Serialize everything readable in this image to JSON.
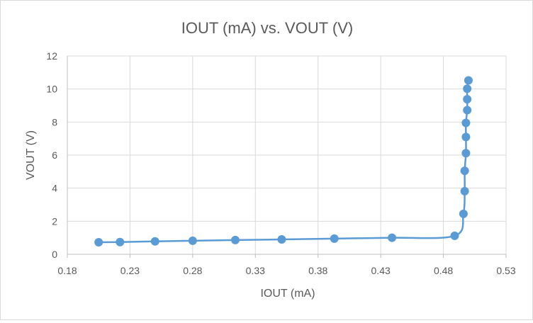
{
  "chart_data": {
    "type": "scatter",
    "title": "IOUT (mA) vs. VOUT (V)",
    "xlabel": "IOUT (mA)",
    "ylabel": "VOUT (V)",
    "xlim": [
      0.18,
      0.53
    ],
    "ylim": [
      0,
      12
    ],
    "x_ticks": [
      0.18,
      0.23,
      0.28,
      0.33,
      0.38,
      0.43,
      0.48,
      0.53
    ],
    "x_tick_labels": [
      "0.18",
      "0.23",
      "0.28",
      "0.33",
      "0.38",
      "0.43",
      "0.48",
      "0.53"
    ],
    "y_ticks": [
      0,
      2,
      4,
      6,
      8,
      10,
      12
    ],
    "y_tick_labels": [
      "0",
      "2",
      "4",
      "6",
      "8",
      "10",
      "12"
    ],
    "grid": true,
    "smooth_line": true,
    "series": [
      {
        "color": "#5b9bd5",
        "points": [
          {
            "x": 0.205,
            "y": 0.73
          },
          {
            "x": 0.222,
            "y": 0.74
          },
          {
            "x": 0.25,
            "y": 0.78
          },
          {
            "x": 0.28,
            "y": 0.82
          },
          {
            "x": 0.314,
            "y": 0.86
          },
          {
            "x": 0.351,
            "y": 0.9
          },
          {
            "x": 0.393,
            "y": 0.95
          },
          {
            "x": 0.439,
            "y": 1.0
          },
          {
            "x": 0.489,
            "y": 1.12
          },
          {
            "x": 0.496,
            "y": 2.45
          },
          {
            "x": 0.497,
            "y": 3.82
          },
          {
            "x": 0.497,
            "y": 5.05
          },
          {
            "x": 0.498,
            "y": 6.12
          },
          {
            "x": 0.498,
            "y": 7.1
          },
          {
            "x": 0.498,
            "y": 7.95
          },
          {
            "x": 0.499,
            "y": 8.72
          },
          {
            "x": 0.499,
            "y": 9.38
          },
          {
            "x": 0.499,
            "y": 10.02
          },
          {
            "x": 0.5,
            "y": 10.52
          }
        ]
      }
    ]
  }
}
